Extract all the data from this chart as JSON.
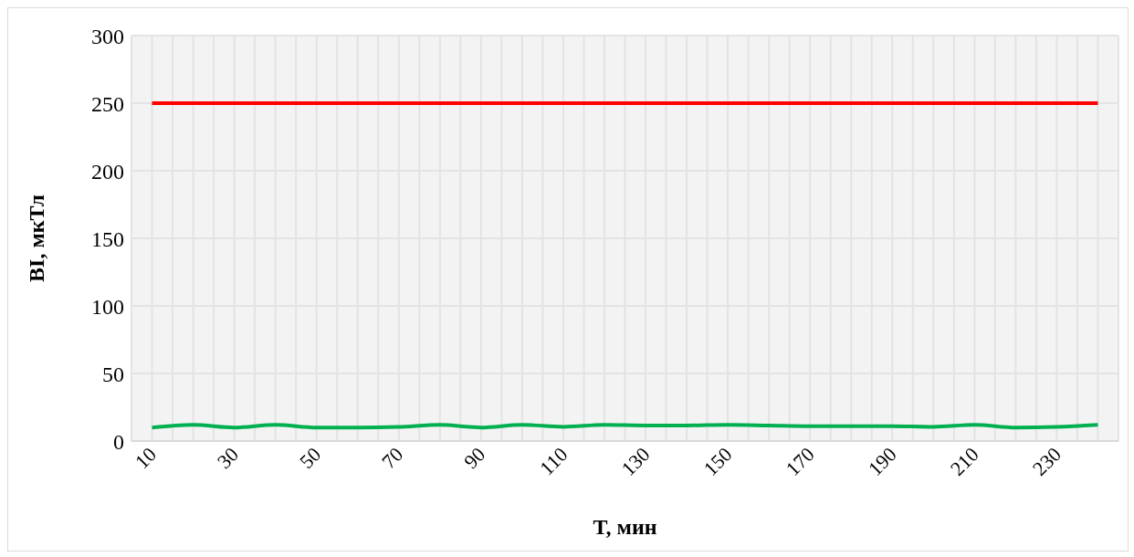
{
  "chart_data": {
    "type": "line",
    "xlabel": "T, мин",
    "ylabel": "BI, мкТл",
    "x": [
      10,
      20,
      30,
      40,
      50,
      60,
      70,
      80,
      90,
      100,
      110,
      120,
      130,
      140,
      150,
      160,
      170,
      180,
      190,
      200,
      210,
      220,
      230,
      240
    ],
    "series": [
      {
        "color": "#ff0000",
        "values": [
          250,
          250,
          250,
          250,
          250,
          250,
          250,
          250,
          250,
          250,
          250,
          250,
          250,
          250,
          250,
          250,
          250,
          250,
          250,
          250,
          250,
          250,
          250,
          250
        ]
      },
      {
        "color": "#00b050",
        "values": [
          10,
          12,
          10,
          12,
          10,
          10,
          10.5,
          12,
          10,
          12,
          10.5,
          12,
          11.5,
          11.5,
          12,
          11.5,
          11,
          11,
          11,
          10.5,
          12,
          10,
          10.5,
          12
        ]
      }
    ],
    "xlim": [
      5,
      245
    ],
    "xticks": [
      {
        "value": 5,
        "label": null
      },
      10,
      {
        "value": 15,
        "label": null
      },
      {
        "value": 20,
        "label": null
      },
      {
        "value": 25,
        "label": null
      },
      30,
      {
        "value": 35,
        "label": null
      },
      {
        "value": 40,
        "label": null
      },
      {
        "value": 45,
        "label": null
      },
      50,
      {
        "value": 55,
        "label": null
      },
      {
        "value": 60,
        "label": null
      },
      {
        "value": 65,
        "label": null
      },
      70,
      {
        "value": 75,
        "label": null
      },
      {
        "value": 80,
        "label": null
      },
      {
        "value": 85,
        "label": null
      },
      90,
      {
        "value": 95,
        "label": null
      },
      {
        "value": 100,
        "label": null
      },
      {
        "value": 105,
        "label": null
      },
      110,
      {
        "value": 115,
        "label": null
      },
      {
        "value": 120,
        "label": null
      },
      {
        "value": 125,
        "label": null
      },
      130,
      {
        "value": 135,
        "label": null
      },
      {
        "value": 140,
        "label": null
      },
      {
        "value": 145,
        "label": null
      },
      150,
      {
        "value": 155,
        "label": null
      },
      {
        "value": 160,
        "label": null
      },
      {
        "value": 165,
        "label": null
      },
      170,
      {
        "value": 175,
        "label": null
      },
      {
        "value": 180,
        "label": null
      },
      {
        "value": 185,
        "label": null
      },
      190,
      {
        "value": 195,
        "label": null
      },
      {
        "value": 200,
        "label": null
      },
      {
        "value": 205,
        "label": null
      },
      210,
      {
        "value": 215,
        "label": null
      },
      {
        "value": 220,
        "label": null
      },
      {
        "value": 225,
        "label": null
      },
      230,
      {
        "value": 235,
        "label": null
      },
      {
        "value": 240,
        "label": null
      },
      {
        "value": 245,
        "label": null
      }
    ],
    "ylim": [
      0,
      300
    ],
    "yticks": [
      0,
      50,
      100,
      150,
      200,
      250,
      300
    ],
    "grid": true,
    "marker": "none",
    "line_style": "solid"
  }
}
